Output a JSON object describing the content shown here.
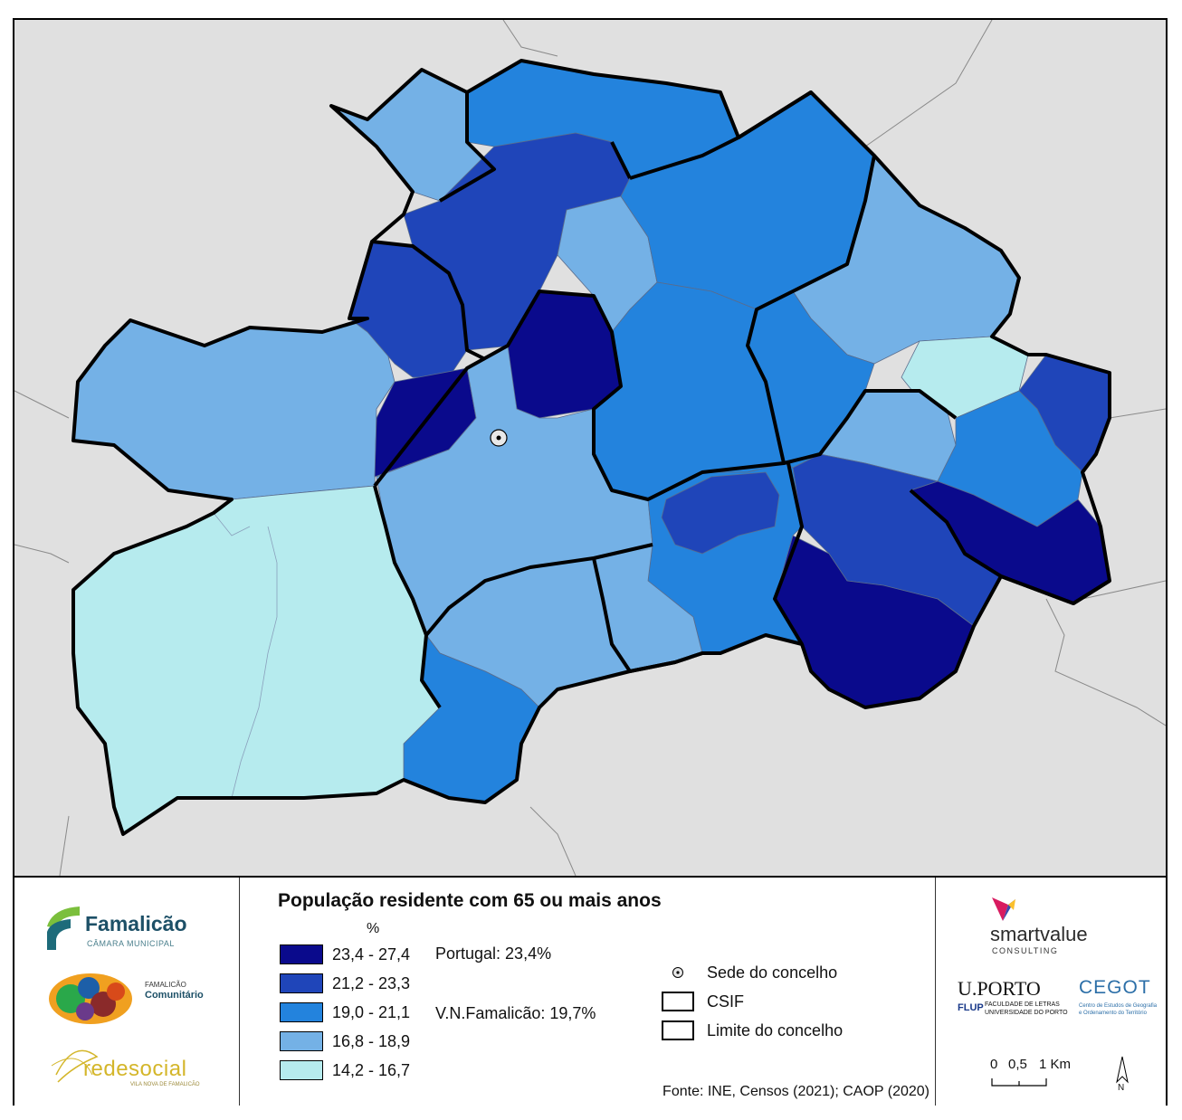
{
  "legend": {
    "title": "População residente com 65 ou mais anos",
    "unit": "%",
    "classes": [
      {
        "label": "23,4 - 27,4",
        "color": "#0a0a8c"
      },
      {
        "label": "21,2 - 23,3",
        "color": "#1f45b9"
      },
      {
        "label": "19,0 - 21,1",
        "color": "#2383dd"
      },
      {
        "label": "16,8 - 18,9",
        "color": "#74b1e6"
      },
      {
        "label": "14,2 - 16,7",
        "color": "#b6ebee"
      }
    ],
    "portugal": "Portugal: 23,4%",
    "vnf": "V.N.Famalicão: 19,7%",
    "symbols": {
      "sede": "Sede do concelho",
      "csif": "CSIF",
      "limite": "Limite do concelho"
    },
    "source": "Fonte: INE, Censos (2021); CAOP (2020)"
  },
  "logos": {
    "famalicao": "Famalicão",
    "famalicao_sub": "CÂMARA MUNICIPAL",
    "comunitario_1": "FAMALICÃO",
    "comunitario_2": "Comunitário",
    "redesocial": "redesocial",
    "redesocial_sub": "VILA NOVA DE FAMALICÃO",
    "smartvalue": "smartvalue",
    "smartvalue_sub": "CONSULTING",
    "uporto": "U.PORTO",
    "flup": "FLUP",
    "flup_sub_1": "FACULDADE DE LETRAS",
    "flup_sub_2": "UNIVERSIDADE DO PORTO",
    "cegot": "CEGOT",
    "cegot_sub_1": "Centro de Estudos de Geografia",
    "cegot_sub_2": "e Ordenamento do Território"
  },
  "scale": {
    "l0": "0",
    "l1": "0,5",
    "l2": "1 Km"
  },
  "north": "N",
  "colors": {
    "background": "#e0e0e0"
  }
}
